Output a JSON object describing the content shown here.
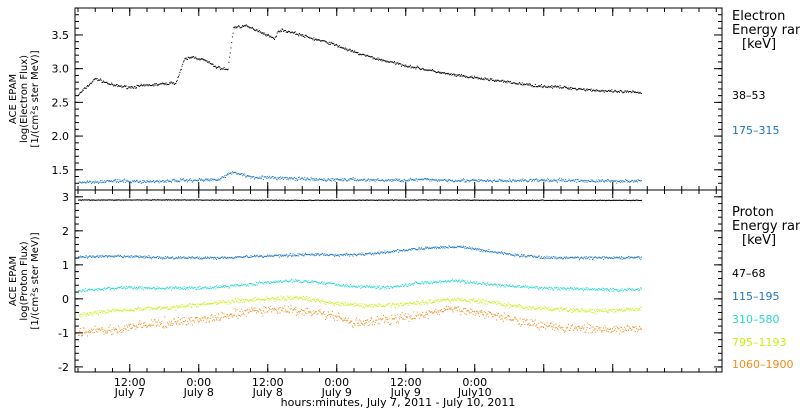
{
  "chart_data": [
    {
      "type": "scatter",
      "panel": "electron",
      "ylabel": [
        "ACE EPAM",
        "log(Electron Flux)",
        "[1/(cm²s ster MeV)]"
      ],
      "ylim": [
        1.2,
        3.9
      ],
      "yticks": [
        "1.5",
        "2.0",
        "2.5",
        "3.0",
        "3.5"
      ],
      "legend": {
        "title": [
          "Electron",
          "Energy ran",
          "[keV]"
        ],
        "placement": "right"
      },
      "series": [
        {
          "name": "38–53",
          "color": "#000000",
          "points": [
            [
              0,
              2.62
            ],
            [
              3,
              2.86
            ],
            [
              6,
              2.76
            ],
            [
              9,
              2.73
            ],
            [
              12,
              2.76
            ],
            [
              15,
              2.78
            ],
            [
              17,
              2.8
            ],
            [
              18.5,
              3.15
            ],
            [
              20,
              3.18
            ],
            [
              22,
              3.13
            ],
            [
              24,
              3.03
            ],
            [
              26,
              2.99
            ],
            [
              27,
              3.62
            ],
            [
              29,
              3.64
            ],
            [
              31,
              3.58
            ],
            [
              33,
              3.5
            ],
            [
              34,
              3.45
            ],
            [
              35,
              3.58
            ],
            [
              37,
              3.55
            ],
            [
              40,
              3.47
            ],
            [
              44,
              3.38
            ],
            [
              48,
              3.25
            ],
            [
              52,
              3.15
            ],
            [
              56,
              3.07
            ],
            [
              60,
              3.0
            ],
            [
              64,
              2.93
            ],
            [
              68,
              2.88
            ],
            [
              72,
              2.84
            ],
            [
              76,
              2.79
            ],
            [
              80,
              2.75
            ],
            [
              84,
              2.73
            ],
            [
              88,
              2.7
            ],
            [
              92,
              2.67
            ],
            [
              96,
              2.66
            ],
            [
              98,
              2.65
            ]
          ]
        },
        {
          "name": "175–315",
          "color": "#1b74c5",
          "points": [
            [
              0,
              1.32
            ],
            [
              6,
              1.34
            ],
            [
              12,
              1.33
            ],
            [
              18,
              1.35
            ],
            [
              24,
              1.36
            ],
            [
              27,
              1.47
            ],
            [
              30,
              1.4
            ],
            [
              36,
              1.38
            ],
            [
              42,
              1.36
            ],
            [
              48,
              1.36
            ],
            [
              54,
              1.35
            ],
            [
              60,
              1.36
            ],
            [
              66,
              1.35
            ],
            [
              72,
              1.34
            ],
            [
              78,
              1.35
            ],
            [
              84,
              1.35
            ],
            [
              90,
              1.34
            ],
            [
              98,
              1.34
            ]
          ]
        }
      ]
    },
    {
      "type": "scatter",
      "panel": "proton",
      "ylabel": [
        "ACE EPAM",
        "log(Proton Flux)",
        "[1/(cm²s ster MeV)]"
      ],
      "ylim": [
        -2.15,
        3.2
      ],
      "yticks": [
        "-2",
        "-1",
        "0",
        "1",
        "2",
        "3"
      ],
      "legend": {
        "title": [
          "Proton",
          "Energy ran",
          "[keV]"
        ],
        "placement": "right"
      },
      "series": [
        {
          "name": "47–68",
          "color": "#000000",
          "points": [
            [
              0,
              2.92
            ],
            [
              20,
              2.92
            ],
            [
              40,
              2.91
            ],
            [
              60,
              2.92
            ],
            [
              80,
              2.91
            ],
            [
              98,
              2.91
            ]
          ]
        },
        {
          "name": "115–195",
          "color": "#1b74c5",
          "points": [
            [
              0,
              1.25
            ],
            [
              8,
              1.26
            ],
            [
              16,
              1.22
            ],
            [
              24,
              1.22
            ],
            [
              32,
              1.27
            ],
            [
              40,
              1.32
            ],
            [
              46,
              1.3
            ],
            [
              52,
              1.35
            ],
            [
              57,
              1.45
            ],
            [
              62,
              1.52
            ],
            [
              66,
              1.55
            ],
            [
              70,
              1.45
            ],
            [
              76,
              1.3
            ],
            [
              82,
              1.22
            ],
            [
              88,
              1.22
            ],
            [
              94,
              1.22
            ],
            [
              98,
              1.22
            ]
          ]
        },
        {
          "name": "310–580",
          "color": "#22d8d0",
          "points": [
            [
              0,
              0.25
            ],
            [
              8,
              0.35
            ],
            [
              16,
              0.32
            ],
            [
              24,
              0.35
            ],
            [
              32,
              0.48
            ],
            [
              38,
              0.55
            ],
            [
              42,
              0.5
            ],
            [
              48,
              0.38
            ],
            [
              54,
              0.35
            ],
            [
              60,
              0.5
            ],
            [
              66,
              0.55
            ],
            [
              70,
              0.45
            ],
            [
              76,
              0.38
            ],
            [
              82,
              0.32
            ],
            [
              88,
              0.3
            ],
            [
              94,
              0.28
            ],
            [
              98,
              0.3
            ]
          ]
        },
        {
          "name": "795–1193",
          "color": "#c8ee10",
          "points": [
            [
              0,
              -0.45
            ],
            [
              8,
              -0.3
            ],
            [
              16,
              -0.25
            ],
            [
              24,
              -0.1
            ],
            [
              32,
              0.0
            ],
            [
              38,
              0.05
            ],
            [
              44,
              -0.1
            ],
            [
              50,
              -0.2
            ],
            [
              56,
              -0.15
            ],
            [
              62,
              -0.05
            ],
            [
              66,
              0.0
            ],
            [
              72,
              -0.1
            ],
            [
              78,
              -0.25
            ],
            [
              84,
              -0.3
            ],
            [
              90,
              -0.35
            ],
            [
              98,
              -0.3
            ]
          ]
        },
        {
          "name": "1060–1900",
          "color": "#ee8c1a",
          "points": [
            [
              0,
              -0.95
            ],
            [
              6,
              -0.9
            ],
            [
              12,
              -0.75
            ],
            [
              18,
              -0.65
            ],
            [
              24,
              -0.55
            ],
            [
              30,
              -0.35
            ],
            [
              36,
              -0.3
            ],
            [
              42,
              -0.4
            ],
            [
              48,
              -0.7
            ],
            [
              54,
              -0.6
            ],
            [
              60,
              -0.45
            ],
            [
              64,
              -0.3
            ],
            [
              68,
              -0.35
            ],
            [
              74,
              -0.5
            ],
            [
              80,
              -0.75
            ],
            [
              86,
              -0.85
            ],
            [
              92,
              -0.9
            ],
            [
              98,
              -0.85
            ]
          ]
        }
      ]
    }
  ],
  "x_axis": {
    "xlabel": "hours:minutes, July  7, 2011 - July 10, 2011",
    "xlim_hours": [
      0,
      112
    ],
    "major_tick_hours": [
      9,
      21,
      33,
      45,
      57,
      69,
      81,
      93
    ],
    "tick_labels": [
      {
        "h": 9,
        "time": "12:00",
        "date": "July 7"
      },
      {
        "h": 21,
        "time": "0:00",
        "date": "July 8"
      },
      {
        "h": 33,
        "time": "12:00",
        "date": "July 8"
      },
      {
        "h": 45,
        "time": "0:00",
        "date": "July 9"
      },
      {
        "h": 57,
        "time": "12:00",
        "date": "July 9"
      },
      {
        "h": 69,
        "time": "0:00",
        "date": "July10"
      }
    ]
  }
}
